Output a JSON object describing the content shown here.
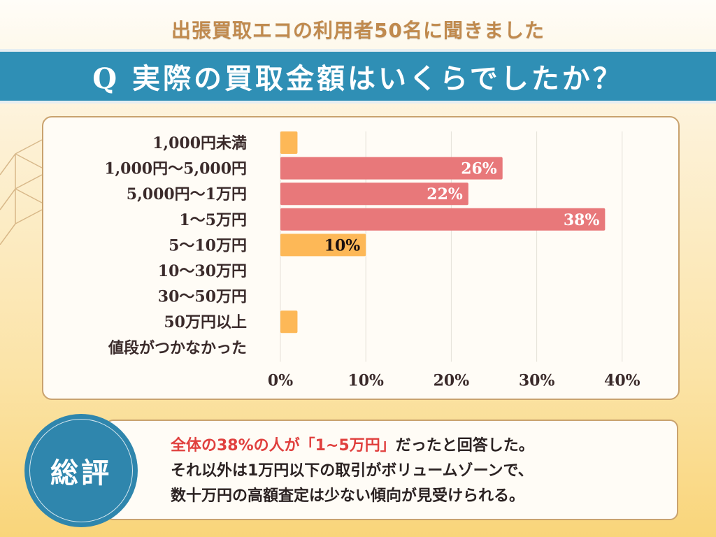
{
  "header": {
    "subtitle": "出張買取エコの利用者50名に聞きました",
    "question": "Q 実際の買取金額はいくらでしたか？"
  },
  "colors": {
    "banner": "#2f8fb5",
    "highlight_bar": "#e8787a",
    "normal_bar": "#fdb857",
    "accent_text": "#e0403e"
  },
  "chart_data": {
    "type": "bar",
    "orientation": "horizontal",
    "title": "Q 実際の買取金額はいくらでしたか？",
    "xlabel": "",
    "ylabel": "",
    "xlim": [
      0,
      40
    ],
    "grid": true,
    "x_ticks": [
      "0%",
      "10%",
      "20%",
      "30%",
      "40%"
    ],
    "categories": [
      "1,000円未満",
      "1,000円〜5,000円",
      "5,000円〜1万円",
      "1〜5万円",
      "5〜10万円",
      "10〜30万円",
      "30〜50万円",
      "50万円以上",
      "値段がつかなかった"
    ],
    "values": [
      2,
      26,
      22,
      38,
      10,
      0,
      0,
      2,
      0
    ],
    "highlighted": [
      false,
      true,
      true,
      true,
      false,
      false,
      false,
      false,
      false
    ],
    "data_labels": [
      "",
      "26%",
      "22%",
      "38%",
      "10%",
      "",
      "",
      "",
      ""
    ]
  },
  "summary": {
    "badge": "総評",
    "line1_highlight": "全体の38%の人が「1~5万円」",
    "line1_rest": "だったと回答した。",
    "line2": "それ以外は1万円以下の取引がボリュームゾーンで、",
    "line3": "数十万円の高額査定は少ない傾向が見受けられる。"
  }
}
